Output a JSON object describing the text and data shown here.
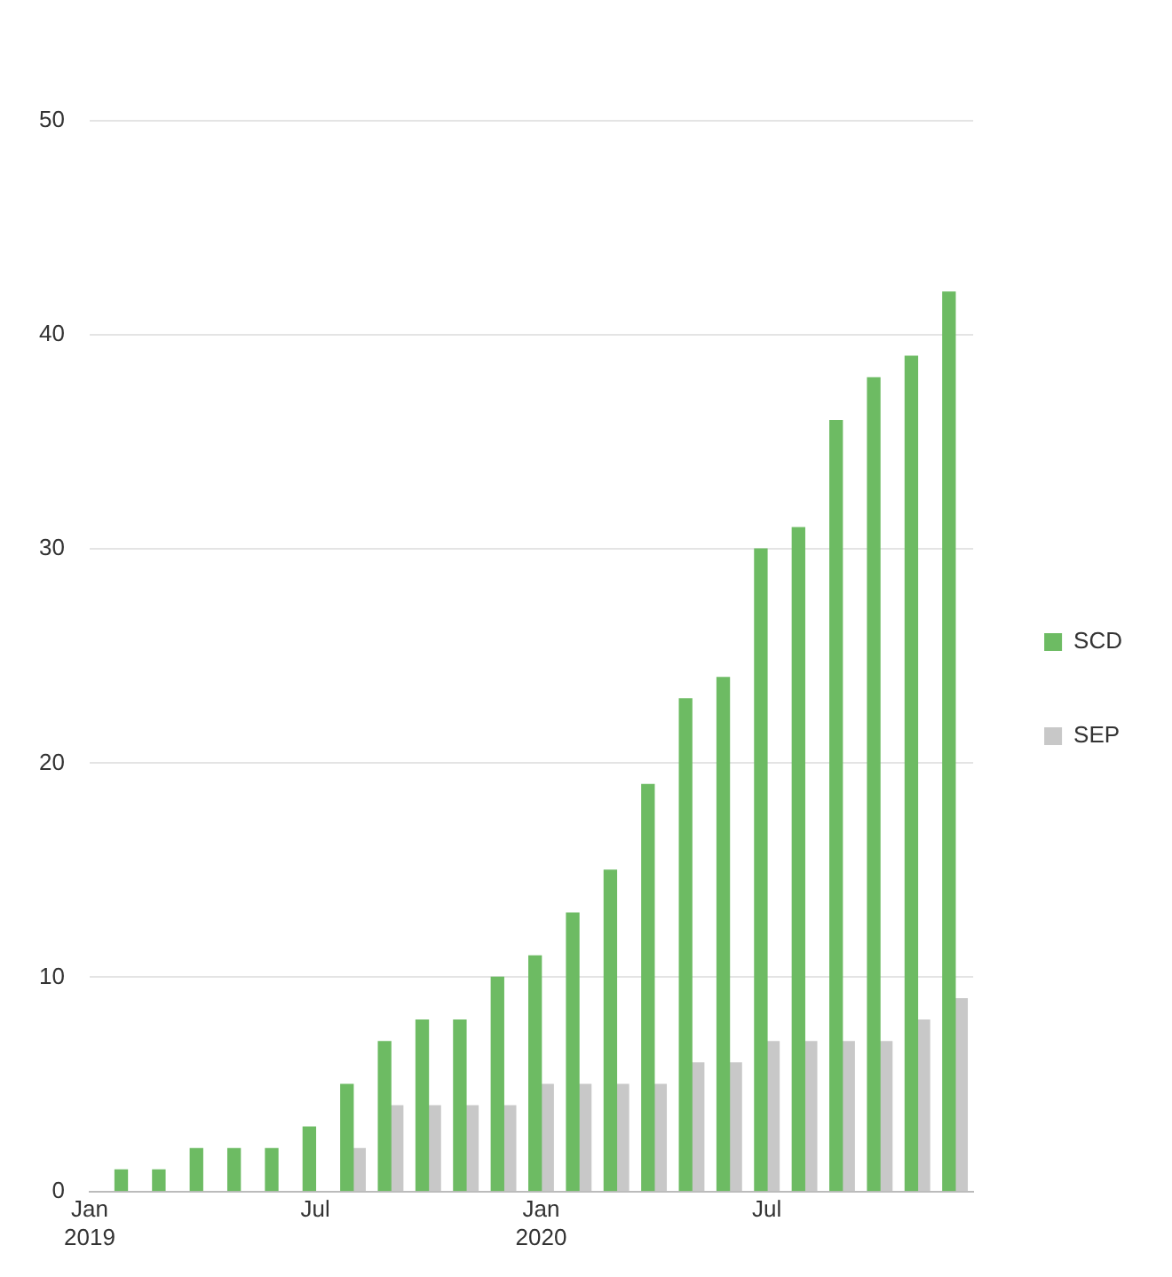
{
  "chart_data": {
    "type": "bar",
    "x": [
      "2019-02",
      "2019-03",
      "2019-04",
      "2019-05",
      "2019-06",
      "2019-07",
      "2019-08",
      "2019-09",
      "2019-10",
      "2019-11",
      "2019-12",
      "2020-01",
      "2020-02",
      "2020-03",
      "2020-04",
      "2020-05",
      "2020-06",
      "2020-07",
      "2020-08",
      "2020-09",
      "2020-10",
      "2020-11",
      "2020-12"
    ],
    "series": [
      {
        "name": "SCD",
        "color": "#6dbb63",
        "values": [
          1,
          1,
          2,
          2,
          2,
          3,
          5,
          7,
          8,
          8,
          10,
          11,
          13,
          15,
          19,
          23,
          24,
          30,
          31,
          36,
          38,
          39,
          42
        ]
      },
      {
        "name": "SEP",
        "color": "#c8c8c8",
        "values": [
          null,
          null,
          null,
          null,
          null,
          null,
          2,
          4,
          4,
          4,
          4,
          5,
          5,
          5,
          5,
          6,
          6,
          7,
          7,
          7,
          7,
          8,
          9
        ]
      }
    ],
    "xlim": [
      "2019-01",
      "2020-12-16"
    ],
    "xticks": [
      {
        "value": "2019-01",
        "label": "Jan 2019"
      },
      {
        "value": "2019-07",
        "label": "Jul"
      },
      {
        "value": "2020-01",
        "label": "Jan 2020"
      },
      {
        "value": "2020-07",
        "label": "Jul"
      }
    ],
    "ylim": [
      0,
      50
    ],
    "yticks": [
      0,
      10,
      20,
      30,
      40,
      50
    ],
    "grid": "y",
    "legend": "right"
  }
}
